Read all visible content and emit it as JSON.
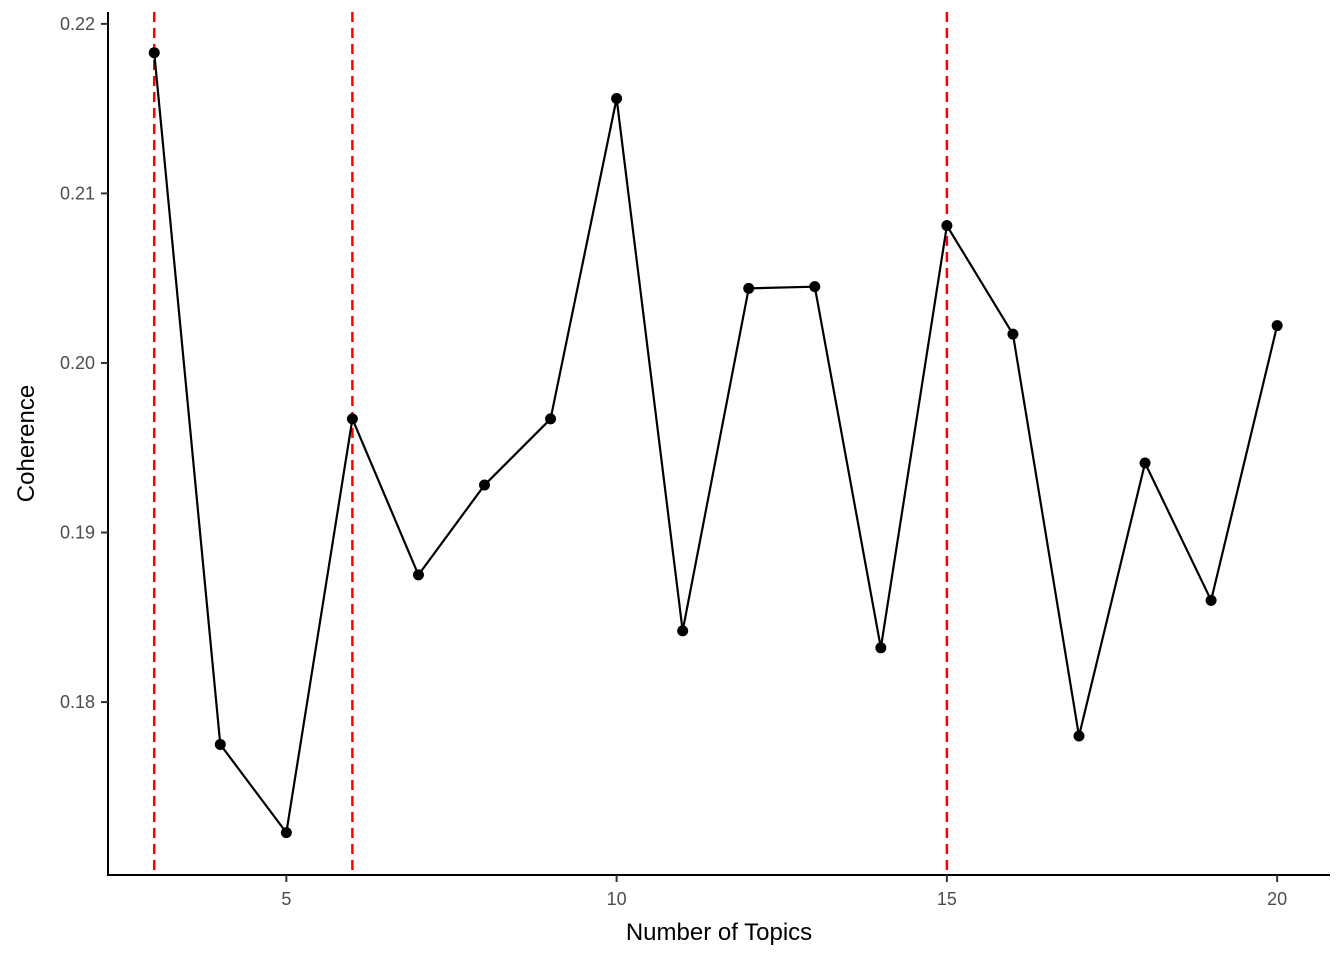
{
  "chart_data": {
    "type": "line",
    "xlabel": "Number of Topics",
    "ylabel": "Coherence",
    "xlim": [
      2.3,
      20.8
    ],
    "ylim": [
      0.1698,
      0.2207
    ],
    "x_ticks": [
      5,
      10,
      15,
      20
    ],
    "y_ticks": [
      0.18,
      0.19,
      0.2,
      0.21,
      0.22
    ],
    "y_tick_labels": [
      "0.18",
      "0.19",
      "0.20",
      "0.21",
      "0.22"
    ],
    "grid": false,
    "legend": "none",
    "series": [
      {
        "x": [
          3,
          4,
          5,
          6,
          7,
          8,
          9,
          10,
          11,
          12,
          13,
          14,
          15,
          16,
          17,
          18,
          19,
          20
        ],
        "y": [
          0.2183,
          0.1775,
          0.1723,
          0.1967,
          0.1875,
          0.1928,
          0.1967,
          0.2156,
          0.1842,
          0.2044,
          0.2045,
          0.1832,
          0.2081,
          0.2017,
          0.178,
          0.1941,
          0.186,
          0.2022
        ],
        "color": "#000000"
      }
    ],
    "reference_lines": {
      "x": [
        3,
        6,
        15
      ],
      "color": "#ff0000",
      "style": "dashed"
    }
  }
}
